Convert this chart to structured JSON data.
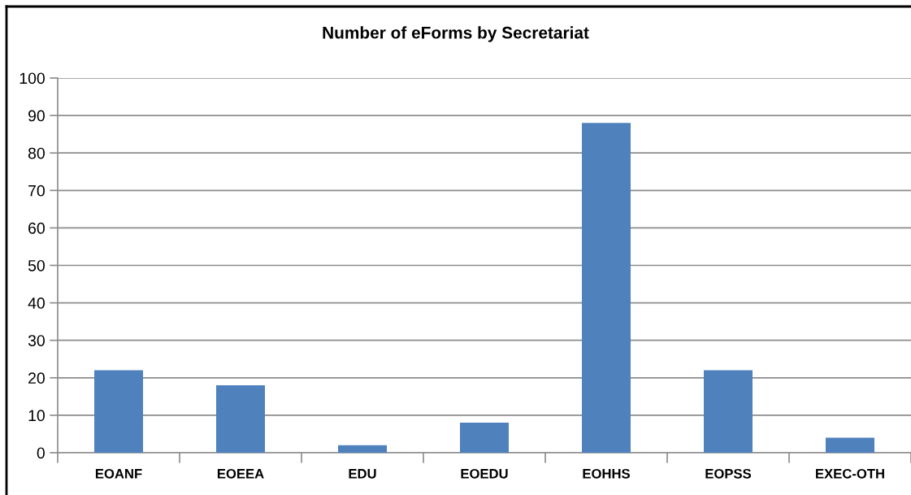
{
  "chart_data": {
    "type": "bar",
    "title": "Number of eForms by Secretariat",
    "categories": [
      "EOANF",
      "EOEEA",
      "EDU",
      "EOEDU",
      "EOHHS",
      "EOPSS",
      "EXEC-OTH"
    ],
    "values": [
      22,
      18,
      2,
      8,
      88,
      22,
      4
    ],
    "color": "#4f81bd",
    "ylim": [
      0,
      100
    ],
    "yticks": [
      0,
      10,
      20,
      30,
      40,
      50,
      60,
      70,
      80,
      90,
      100
    ],
    "grid": "y"
  }
}
